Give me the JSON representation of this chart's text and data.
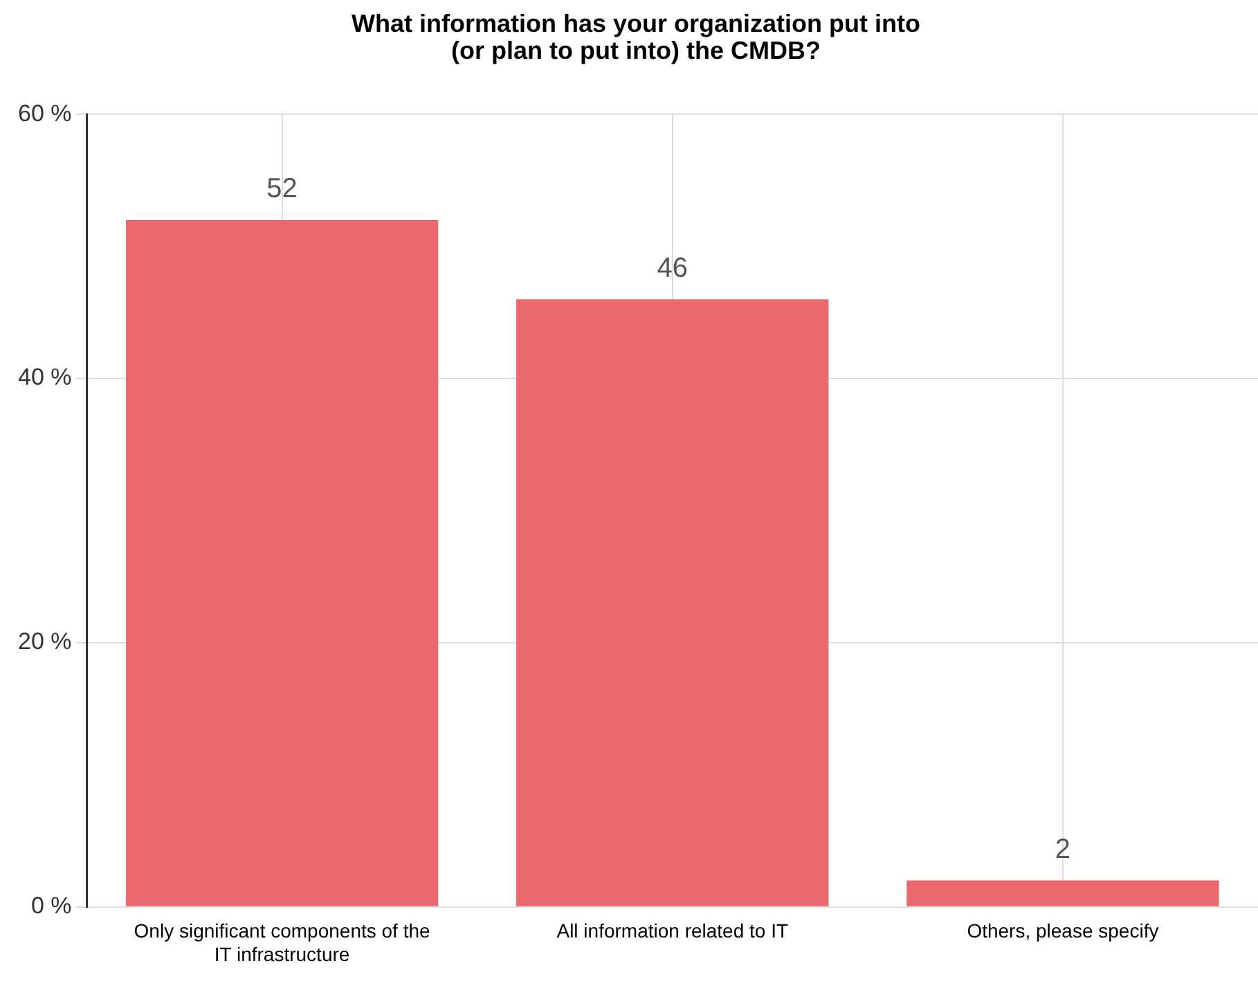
{
  "chart_data": {
    "type": "bar",
    "title": "What information has your organization put into\n(or plan to put into) the CMDB?",
    "categories": [
      "Only significant components of the IT infrastructure",
      "All information related to IT",
      "Others, please specify"
    ],
    "values": [
      52,
      46,
      2
    ],
    "color": "#e8686e",
    "ylim": [
      0,
      60
    ],
    "yticks": [
      {
        "value": 0,
        "label": "0 %"
      },
      {
        "value": 20,
        "label": "20 %"
      },
      {
        "value": 40,
        "label": "40 %"
      },
      {
        "value": 60,
        "label": "60 %"
      }
    ],
    "grid": true,
    "data_labels": true,
    "legend": false
  }
}
